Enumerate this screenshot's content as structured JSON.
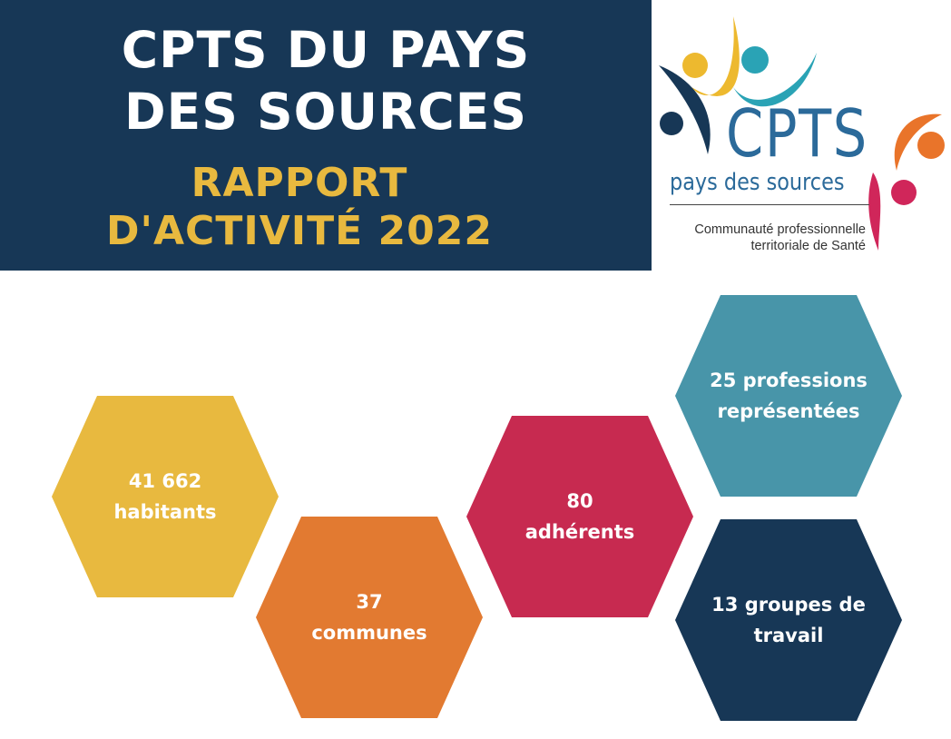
{
  "header": {
    "title_line1": "CPTS DU PAYS",
    "title_line2": "DES SOURCES",
    "subtitle_line1": "RAPPORT",
    "subtitle_line2": "D'ACTIVITÉ 2022"
  },
  "logo": {
    "name": "CPTS",
    "subname": "pays des sources",
    "tagline_line1": "Communauté professionnelle",
    "tagline_line2": "territoriale de Santé",
    "colors": {
      "blue": "#2b6a9a",
      "teal": "#2aa3b5",
      "yellow": "#edb92f",
      "orange": "#e9742a",
      "pink": "#d0265a",
      "navy": "#173756"
    }
  },
  "stats": [
    {
      "line1": "41 662",
      "line2": "habitants",
      "color": "#e8b93f"
    },
    {
      "line1": "37",
      "line2": "communes",
      "color": "#e27a31"
    },
    {
      "line1": "80",
      "line2": "adhérents",
      "color": "#c72a50"
    },
    {
      "line1": "25 professions",
      "line2": "représentées",
      "color": "#4895a9"
    },
    {
      "line1": "13 groupes de",
      "line2": "travail",
      "color": "#173756"
    }
  ]
}
